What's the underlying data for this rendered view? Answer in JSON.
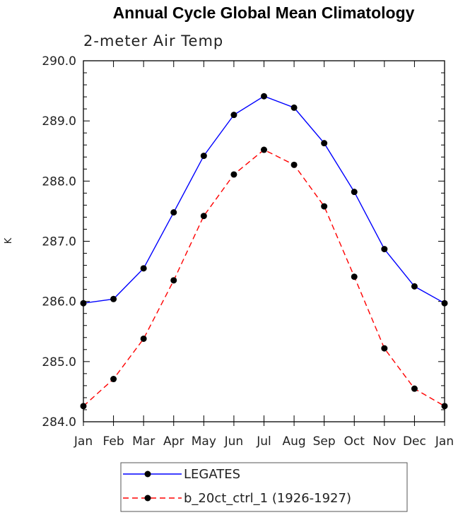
{
  "chart_data": {
    "type": "line",
    "title": "Annual Cycle Global Mean Climatology",
    "subtitle": "2-meter Air Temp",
    "xlabel": "",
    "ylabel": "K",
    "categories": [
      "Jan",
      "Feb",
      "Mar",
      "Apr",
      "May",
      "Jun",
      "Jul",
      "Aug",
      "Sep",
      "Oct",
      "Nov",
      "Dec",
      "Jan"
    ],
    "ylim": [
      284.0,
      290.0
    ],
    "yticks": [
      "284.0",
      "285.0",
      "286.0",
      "287.0",
      "288.0",
      "289.0",
      "290.0"
    ],
    "legend_position": "bottom",
    "grid": false,
    "series": [
      {
        "name": "LEGATES",
        "color": "#0000ff",
        "dash": "solid",
        "values": [
          285.97,
          286.04,
          286.55,
          287.48,
          288.42,
          289.1,
          289.41,
          289.22,
          288.63,
          287.82,
          286.87,
          286.25,
          285.97
        ]
      },
      {
        "name": "b_20ct_ctrl_1 (1926-1927)",
        "color": "#ff0000",
        "dash": "dashed",
        "values": [
          284.26,
          284.71,
          285.38,
          286.35,
          287.42,
          288.11,
          288.52,
          288.27,
          287.58,
          286.41,
          285.22,
          284.55,
          284.26
        ]
      }
    ]
  }
}
